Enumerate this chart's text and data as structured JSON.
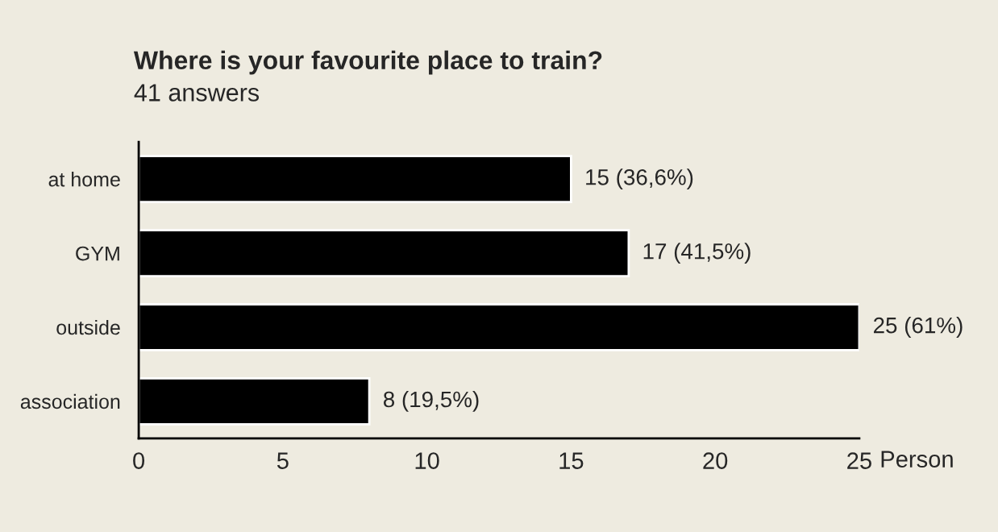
{
  "chart_data": {
    "type": "bar",
    "orientation": "horizontal",
    "title": "Where is your favourite place to train?",
    "subtitle": "41 answers",
    "xlabel": "Person",
    "categories": [
      "at home",
      "GYM",
      "outside",
      "association"
    ],
    "values": [
      15,
      17,
      25,
      8
    ],
    "value_labels": [
      "15 (36,6%)",
      "17 (41,5%)",
      "25 (61%)",
      "8 (19,5%)"
    ],
    "color": "#000000",
    "xlim": [
      0,
      25
    ],
    "xticks": [
      0,
      5,
      10,
      15,
      20,
      25
    ],
    "grid": false,
    "legend": false
  }
}
